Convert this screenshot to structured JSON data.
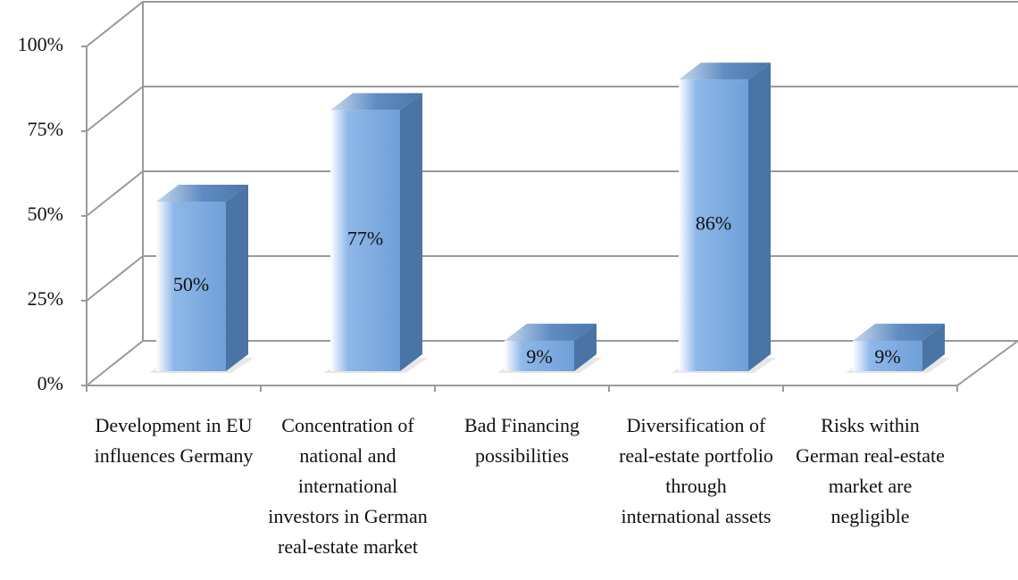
{
  "chart_data": {
    "type": "bar3d",
    "categories": [
      "Development in EU influences Germany",
      "Concentration of national and international investors in German real-estate market",
      "Bad Financing possibilities",
      "Diversification of real-estate portfolio through international assets",
      "Risks within German real-estate market are negligible"
    ],
    "values": [
      50,
      77,
      9,
      86,
      9
    ],
    "value_labels": [
      "50%",
      "77%",
      "9%",
      "86%",
      "9%"
    ],
    "color": "#7aaae2",
    "ylim": [
      0,
      100
    ],
    "yticks": [
      {
        "value": 0,
        "label": "0%"
      },
      {
        "value": 25,
        "label": "25%"
      },
      {
        "value": 50,
        "label": "50%"
      },
      {
        "value": 75,
        "label": "75%"
      },
      {
        "value": 100,
        "label": "100%"
      }
    ],
    "grid": true
  }
}
